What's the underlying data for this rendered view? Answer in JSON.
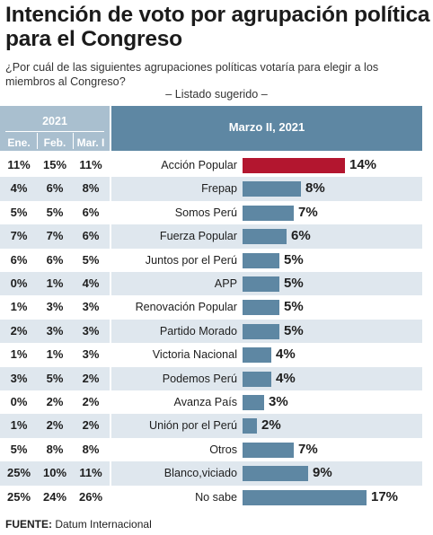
{
  "title": "Intención de voto por agrupación política para el Congreso",
  "question": "¿Por cuál de las siguientes agrupaciones políticas votaría para elegir a los miembros al Congreso?",
  "suggested_list": "– Listado sugerido –",
  "colors": {
    "bar": "#5e87a3",
    "highlight": "#b3162f",
    "header_left": "#a9bfcf",
    "row_shade": "#dfe7ee"
  },
  "chart_data": {
    "type": "bar",
    "orientation": "horizontal",
    "year_header": "2021",
    "history_columns": [
      "Ene.",
      "Feb.",
      "Mar. I"
    ],
    "current_period": "Marzo II, 2021",
    "rows": [
      {
        "name": "Acción Popular",
        "ene": "11%",
        "feb": "15%",
        "mar1": "11%",
        "value": 14,
        "label": "14%",
        "highlight": true
      },
      {
        "name": "Frepap",
        "ene": "4%",
        "feb": "6%",
        "mar1": "8%",
        "value": 8,
        "label": "8%"
      },
      {
        "name": "Somos Perú",
        "ene": "5%",
        "feb": "5%",
        "mar1": "6%",
        "value": 7,
        "label": "7%"
      },
      {
        "name": "Fuerza Popular",
        "ene": "7%",
        "feb": "7%",
        "mar1": "6%",
        "value": 6,
        "label": "6%"
      },
      {
        "name": "Juntos por el Perú",
        "ene": "6%",
        "feb": "6%",
        "mar1": "5%",
        "value": 5,
        "label": "5%"
      },
      {
        "name": "APP",
        "ene": "0%",
        "feb": "1%",
        "mar1": "4%",
        "value": 5,
        "label": "5%"
      },
      {
        "name": "Renovación Popular",
        "ene": "1%",
        "feb": "3%",
        "mar1": "3%",
        "value": 5,
        "label": "5%"
      },
      {
        "name": "Partido Morado",
        "ene": "2%",
        "feb": "3%",
        "mar1": "3%",
        "value": 5,
        "label": "5%"
      },
      {
        "name": "Victoria Nacional",
        "ene": "1%",
        "feb": "1%",
        "mar1": "3%",
        "value": 4,
        "label": "4%"
      },
      {
        "name": "Podemos Perú",
        "ene": "3%",
        "feb": "5%",
        "mar1": "2%",
        "value": 4,
        "label": "4%"
      },
      {
        "name": "Avanza País",
        "ene": "0%",
        "feb": "2%",
        "mar1": "2%",
        "value": 3,
        "label": "3%"
      },
      {
        "name": "Unión por el Perú",
        "ene": "1%",
        "feb": "2%",
        "mar1": "2%",
        "value": 2,
        "label": "2%"
      },
      {
        "name": "Otros",
        "ene": "5%",
        "feb": "8%",
        "mar1": "8%",
        "value": 7,
        "label": "7%"
      },
      {
        "name": "Blanco,viciado",
        "ene": "25%",
        "feb": "10%",
        "mar1": "11%",
        "value": 9,
        "label": "9%"
      },
      {
        "name": "No sabe",
        "ene": "25%",
        "feb": "24%",
        "mar1": "26%",
        "value": 17,
        "label": "17%"
      }
    ]
  },
  "source": {
    "label": "FUENTE:",
    "text": "Datum Internacional"
  }
}
